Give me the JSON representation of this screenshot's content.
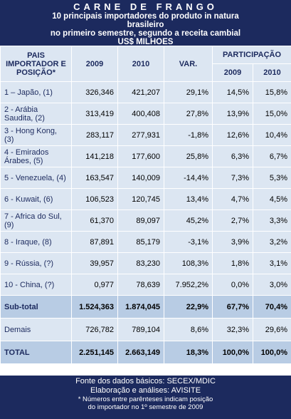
{
  "header": {
    "title": "CARNE DE FRANGO",
    "lines": [
      "10 principais importadores do produto in natura",
      "brasileiro",
      "no primeiro semestre, segundo a receita cambial",
      "US$ MILHOES"
    ]
  },
  "table": {
    "columns": {
      "country": "PAIS IMPORTADOR E POSIÇÃO*",
      "y2009": "2009",
      "y2010": "2010",
      "var": "VAR.",
      "share": "PARTICIPAÇÃO",
      "share2009": "2009",
      "share2010": "2010"
    },
    "rows": [
      [
        "1 – Japão, (1)",
        "326,346",
        "421,207",
        "29,1%",
        "14,5%",
        "15,8%"
      ],
      [
        "2 - Arábia Saudita, (2)",
        "313,419",
        "400,408",
        "27,8%",
        "13,9%",
        "15,0%"
      ],
      [
        "3 - Hong Kong, (3)",
        "283,117",
        "277,931",
        "-1,8%",
        "12,6%",
        "10,4%"
      ],
      [
        "4 - Emirados Árabes, (5)",
        "141,218",
        "177,600",
        "25,8%",
        "6,3%",
        "6,7%"
      ],
      [
        "5 - Venezuela, (4)",
        "163,547",
        "140,009",
        "-14,4%",
        "7,3%",
        "5,3%"
      ],
      [
        "6 - Kuwait, (6)",
        "106,523",
        "120,745",
        "13,4%",
        "4,7%",
        "4,5%"
      ],
      [
        "7 - Africa do Sul, (9)",
        "61,370",
        "89,097",
        "45,2%",
        "2,7%",
        "3,3%"
      ],
      [
        "8 - Iraque, (8)",
        "87,891",
        "85,179",
        "-3,1%",
        "3,9%",
        "3,2%"
      ],
      [
        "9 - Rússia, (?)",
        "39,957",
        "83,230",
        "108,3%",
        "1,8%",
        "3,1%"
      ],
      [
        "10 - China, (?)",
        "0,977",
        "78,639",
        "7.952,2%",
        "0,0%",
        "3,0%"
      ]
    ],
    "subtotal": [
      "Sub-total",
      "1.524,363",
      "1.874,045",
      "22,9%",
      "67,7%",
      "70,4%"
    ],
    "others": [
      "Demais",
      "726,782",
      "789,104",
      "8,6%",
      "32,3%",
      "29,6%"
    ],
    "total": [
      "TOTAL",
      "2.251,145",
      "2.663,149",
      "18,3%",
      "100,0%",
      "100,0%"
    ]
  },
  "footer": {
    "lines": [
      "Fonte dos dados básicos: SECEX/MDIC",
      "Elaboração e análises: AVISITE",
      "* Números entre parênteses indicam posição",
      "do importador no 1º semestre de 2009"
    ]
  }
}
